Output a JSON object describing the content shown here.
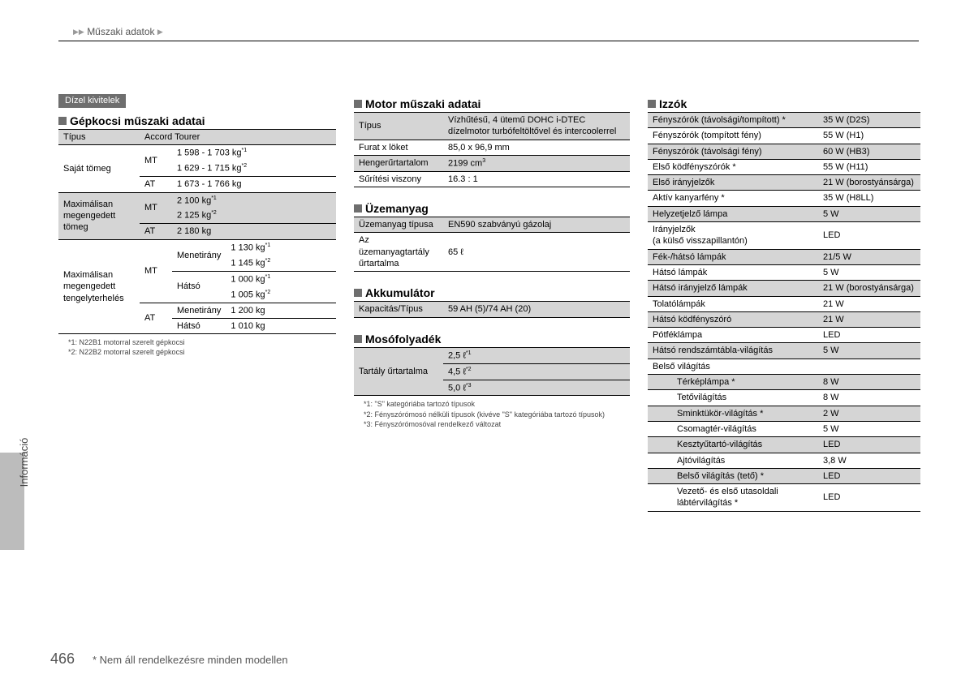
{
  "breadcrumb": "Műszaki adatok",
  "badge": "Dízel kivitelek",
  "pageNumber": "466",
  "footerNote": "* Nem áll rendelkezésre minden modellen",
  "sideTab": "Információ",
  "vehicle": {
    "heading": "Gépkocsi műszaki adatai",
    "typeLabel": "Típus",
    "typeValue": "Accord Tourer",
    "ownWeightLabel": "Saját tömeg",
    "mt": "MT",
    "at": "AT",
    "ownMt1": "1 598 - 1 703 kg",
    "ownMt1Sup": "*1",
    "ownMt2": "1 629 - 1 715 kg",
    "ownMt2Sup": "*2",
    "ownAt": "1 673 - 1 766 kg",
    "maxWeightLabel": "Maximálisan megengedett tömeg",
    "maxMt1": "2 100 kg",
    "maxMt1Sup": "*1",
    "maxMt2": "2 125 kg",
    "maxMt2Sup": "*2",
    "maxAt": "2 180 kg",
    "axleLabel": "Maximálisan megengedett tengelyterhelés",
    "menet": "Menetirány",
    "hatso": "Hátsó",
    "axleMtMenet1": "1 130 kg",
    "axleMtMenet1Sup": "*1",
    "axleMtMenet2": "1 145 kg",
    "axleMtMenet2Sup": "*2",
    "axleMtHatso1": "1 000 kg",
    "axleMtHatso1Sup": "*1",
    "axleMtHatso2": "1 005 kg",
    "axleMtHatso2Sup": "*2",
    "axleAtMenet": "1 200 kg",
    "axleAtHatso": "1 010 kg",
    "fn1": "*1:  N22B1 motorral szerelt gépkocsi",
    "fn2": "*2:  N22B2 motorral szerelt gépkocsi"
  },
  "engine": {
    "heading": "Motor műszaki adatai",
    "typeLabel": "Típus",
    "typeValue": "Vízhűtésű, 4 ütemű DOHC i-DTEC dízelmotor turbófeltöltővel és intercoolerrel",
    "boreLabel": "Furat x löket",
    "boreValue": "85,0 x 96,9 mm",
    "dispLabel": "Hengerűrtartalom",
    "dispValue": "2199 cm",
    "dispSup": "3",
    "compLabel": "Sűrítési viszony",
    "compValue": "16.3 : 1"
  },
  "fuel": {
    "heading": "Üzemanyag",
    "typeLabel": "Üzemanyag típusa",
    "typeValue": "EN590 szabványú gázolaj",
    "tankLabel": "Az üzemanyagtartály űrtartalma",
    "tankValue": "65 ℓ"
  },
  "battery": {
    "heading": "Akkumulátor",
    "label": "Kapacitás/Típus",
    "value": "59 AH (5)/74 AH (20)"
  },
  "washer": {
    "heading": "Mosófolyadék",
    "label": "Tartály űrtartalma",
    "v1": "2,5 ℓ",
    "v1Sup": "*1",
    "v2": "4,5 ℓ",
    "v2Sup": "*2",
    "v3": "5,0 ℓ",
    "v3Sup": "*3",
    "fn1": "*1:  \"S\" kategóriába tartozó típusok",
    "fn2": "*2:  Fényszórómosó nélküli típusok (kivéve \"S\" kategóriába tartozó típusok)",
    "fn3": "*3:  Fényszórómosóval rendelkező változat"
  },
  "bulbs": {
    "heading": "Izzók",
    "rows": [
      {
        "l": "Fényszórók (távolsági/tompított) *",
        "v": "35 W (D2S)",
        "s": true
      },
      {
        "l": "Fényszórók (tompított fény)",
        "v": "55 W (H1)",
        "s": false
      },
      {
        "l": "Fényszórók (távolsági fény)",
        "v": "60 W (HB3)",
        "s": true
      },
      {
        "l": "Első ködfényszórók *",
        "v": "55 W (H11)",
        "s": false
      },
      {
        "l": "Első irányjelzők",
        "v": "21 W (borostyánsárga)",
        "s": true
      },
      {
        "l": "Aktív kanyarfény *",
        "v": "35 W (H8LL)",
        "s": false
      },
      {
        "l": "Helyzetjelző lámpa",
        "v": "5 W",
        "s": true
      },
      {
        "l": "Irányjelzők\n(a külső visszapillantón)",
        "v": "LED",
        "s": false
      },
      {
        "l": "Fék-/hátsó lámpák",
        "v": "21/5 W",
        "s": true
      },
      {
        "l": "Hátsó lámpák",
        "v": "5 W",
        "s": false
      },
      {
        "l": "Hátsó irányjelző lámpák",
        "v": "21 W (borostyánsárga)",
        "s": true
      },
      {
        "l": "Tolatólámpák",
        "v": "21 W",
        "s": false
      },
      {
        "l": "Hátsó ködfényszóró",
        "v": "21 W",
        "s": true
      },
      {
        "l": "Pótféklámpa",
        "v": "LED",
        "s": false
      },
      {
        "l": "Hátsó rendszámtábla-világítás",
        "v": "5 W",
        "s": true
      }
    ],
    "interiorHeading": "Belső világítás",
    "interiorRows": [
      {
        "l": "Térképlámpa *",
        "v": "8 W",
        "s": true
      },
      {
        "l": "Tetővilágítás",
        "v": "8 W",
        "s": false
      },
      {
        "l": "Sminktükör-világítás *",
        "v": "2 W",
        "s": true
      },
      {
        "l": "Csomagtér-világítás",
        "v": "5 W",
        "s": false
      },
      {
        "l": "Kesztyűtartó-világítás",
        "v": "LED",
        "s": true
      },
      {
        "l": "Ajtóvilágítás",
        "v": "3,8 W",
        "s": false
      },
      {
        "l": "Belső világítás (tető) *",
        "v": "LED",
        "s": true
      },
      {
        "l": "Vezető- és első utasoldali lábtérvilágítás *",
        "v": "LED",
        "s": false
      }
    ]
  }
}
